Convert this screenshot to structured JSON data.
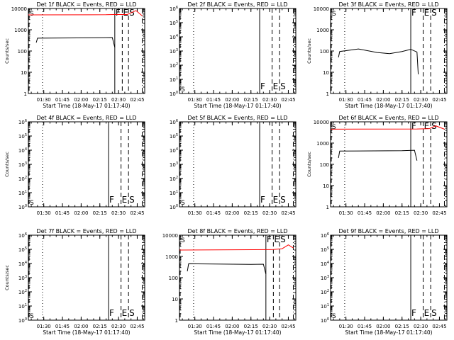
{
  "chart_data": [
    {
      "type": "line",
      "title": "Det 1f BLACK = Events, RED = LLD",
      "ylabel": "Counts/sec",
      "xlabel": "Start Time (18-May-17 01:17:40)",
      "x_ticks": [
        "01:30",
        "01:45",
        "02:00",
        "02:15",
        "02:30",
        "02:45"
      ],
      "y_scale": "log",
      "y_ticks": [
        "1",
        "10",
        "100",
        "1000",
        "10000"
      ],
      "ylim": [
        1,
        10000
      ],
      "markers": [
        {
          "label": "S",
          "time": "01:17:40",
          "style": "dashed"
        },
        {
          "label": "",
          "time": "01:29",
          "style": "dotted"
        },
        {
          "label": "F",
          "time": "02:27",
          "style": "solid"
        },
        {
          "label": "E",
          "time": "02:33",
          "style": "dashed"
        },
        {
          "label": "S",
          "time": "02:38",
          "style": "dashed"
        },
        {
          "label": "",
          "time": "02:49",
          "style": "dashdot"
        }
      ],
      "series": [
        {
          "name": "BLACK = Events",
          "color": "#000000",
          "x": [
            "01:24",
            "01:25",
            "02:15",
            "02:25",
            "02:27"
          ],
          "y": [
            250,
            400,
            420,
            430,
            150
          ]
        },
        {
          "name": "RED = LLD",
          "color": "#ff0000",
          "x": [
            "01:17:40",
            "02:20",
            "02:27",
            "02:37",
            "02:44",
            "02:49"
          ],
          "y": [
            5000,
            5100,
            5200,
            5200,
            8000,
            4500
          ]
        }
      ]
    },
    {
      "type": "line",
      "title": "Det 2f BLACK = Events, RED = LLD",
      "ylabel": "",
      "xlabel": "Start Time (18-May-17 01:17:40)",
      "x_ticks": [
        "01:30",
        "01:45",
        "02:00",
        "02:15",
        "02:30",
        "02:45"
      ],
      "y_scale": "log",
      "y_ticks": [
        "10^0",
        "10^1",
        "10^2",
        "10^3",
        "10^4",
        "10^5",
        "10^6"
      ],
      "ylim": [
        1,
        1000000
      ],
      "markers": [
        {
          "label": "S",
          "time": "01:17:40",
          "style": "dashed"
        },
        {
          "label": "",
          "time": "01:29",
          "style": "dotted"
        },
        {
          "label": "F",
          "time": "02:22",
          "style": "solid"
        },
        {
          "label": "E",
          "time": "02:32",
          "style": "dashed"
        },
        {
          "label": "S",
          "time": "02:38",
          "style": "dashed"
        },
        {
          "label": "",
          "time": "02:49",
          "style": "dashdot"
        }
      ],
      "series": []
    },
    {
      "type": "line",
      "title": "Det 3f BLACK = Events, RED = LLD",
      "ylabel": "Counts/sec",
      "xlabel": "Start Time (18-May-17 01:17:40)",
      "x_ticks": [
        "01:30",
        "01:45",
        "02:00",
        "02:15",
        "02:30",
        "02:45"
      ],
      "y_scale": "log",
      "y_ticks": [
        "1",
        "10",
        "100",
        "1000",
        "10000"
      ],
      "ylim": [
        1,
        10000
      ],
      "markers": [
        {
          "label": "S",
          "time": "01:17:40",
          "style": "dashed"
        },
        {
          "label": "",
          "time": "01:29",
          "style": "dotted"
        },
        {
          "label": "F",
          "time": "02:22",
          "style": "solid"
        },
        {
          "label": "E",
          "time": "02:32",
          "style": "dashed"
        },
        {
          "label": "S",
          "time": "02:38",
          "style": "dashed"
        },
        {
          "label": "",
          "time": "02:49",
          "style": "dashdot"
        }
      ],
      "series": [
        {
          "name": "BLACK = Events",
          "color": "#000000",
          "x": [
            "01:24",
            "01:25",
            "01:40",
            "01:55",
            "02:05",
            "02:15",
            "02:22",
            "02:27",
            "02:28"
          ],
          "y": [
            50,
            95,
            125,
            85,
            75,
            95,
            120,
            90,
            8
          ]
        }
      ]
    },
    {
      "type": "line",
      "title": "Det 4f BLACK = Events, RED = LLD",
      "ylabel": "Counts/sec",
      "xlabel": "",
      "x_ticks": [
        "01:30",
        "01:45",
        "02:00",
        "02:15",
        "02:30",
        "02:45"
      ],
      "y_scale": "log",
      "y_ticks": [
        "10^0",
        "10^1",
        "10^2",
        "10^3",
        "10^4",
        "10^5",
        "10^6"
      ],
      "ylim": [
        1,
        1000000
      ],
      "markers": [
        {
          "label": "S",
          "time": "01:17:40",
          "style": "dashed"
        },
        {
          "label": "",
          "time": "01:29",
          "style": "dotted"
        },
        {
          "label": "F",
          "time": "02:22",
          "style": "solid"
        },
        {
          "label": "E",
          "time": "02:32",
          "style": "dashed"
        },
        {
          "label": "S",
          "time": "02:38",
          "style": "dashed"
        },
        {
          "label": "",
          "time": "02:49",
          "style": "dashdot"
        }
      ],
      "series": []
    },
    {
      "type": "line",
      "title": "Det 5f BLACK = Events, RED = LLD",
      "ylabel": "",
      "xlabel": "",
      "x_ticks": [
        "01:30",
        "01:45",
        "02:00",
        "02:15",
        "02:30",
        "02:45"
      ],
      "y_scale": "log",
      "y_ticks": [
        "10^0",
        "10^1",
        "10^2",
        "10^3",
        "10^4",
        "10^5",
        "10^6"
      ],
      "ylim": [
        1,
        1000000
      ],
      "markers": [
        {
          "label": "S",
          "time": "01:17:40",
          "style": "dashed"
        },
        {
          "label": "",
          "time": "01:29",
          "style": "dotted"
        },
        {
          "label": "F",
          "time": "02:22",
          "style": "solid"
        },
        {
          "label": "E",
          "time": "02:32",
          "style": "dashed"
        },
        {
          "label": "S",
          "time": "02:38",
          "style": "dashed"
        },
        {
          "label": "",
          "time": "02:49",
          "style": "dashdot"
        }
      ],
      "series": []
    },
    {
      "type": "line",
      "title": "Det 6f BLACK = Events, RED = LLD",
      "ylabel": "Counts/sec",
      "xlabel": "",
      "x_ticks": [
        "01:30",
        "01:45",
        "02:00",
        "02:15",
        "02:30",
        "02:45"
      ],
      "y_scale": "log",
      "y_ticks": [
        "1",
        "10",
        "100",
        "1000",
        "10000"
      ],
      "ylim": [
        1,
        10000
      ],
      "markers": [
        {
          "label": "S",
          "time": "01:17:40",
          "style": "dashed"
        },
        {
          "label": "",
          "time": "01:29",
          "style": "dotted"
        },
        {
          "label": "F",
          "time": "02:22",
          "style": "solid"
        },
        {
          "label": "E",
          "time": "02:32",
          "style": "dashed"
        },
        {
          "label": "S",
          "time": "02:38",
          "style": "dashed"
        },
        {
          "label": "",
          "time": "02:49",
          "style": "dashdot"
        }
      ],
      "series": [
        {
          "name": "BLACK = Events",
          "color": "#000000",
          "x": [
            "01:24",
            "01:25",
            "02:15",
            "02:25",
            "02:27"
          ],
          "y": [
            200,
            420,
            440,
            460,
            150
          ]
        },
        {
          "name": "RED = LLD",
          "color": "#ff0000",
          "x": [
            "01:17:40",
            "02:27",
            "02:37",
            "02:42",
            "02:49"
          ],
          "y": [
            4500,
            4600,
            4800,
            6500,
            4500
          ]
        }
      ]
    },
    {
      "type": "line",
      "title": "Det 7f BLACK = Events, RED = LLD",
      "ylabel": "Counts/sec",
      "xlabel": "Start Time (18-May-17 01:17:40)",
      "x_ticks": [
        "01:30",
        "01:45",
        "02:00",
        "02:15",
        "02:30",
        "02:45"
      ],
      "y_scale": "log",
      "y_ticks": [
        "10^0",
        "10^1",
        "10^2",
        "10^3",
        "10^4",
        "10^5",
        "10^6"
      ],
      "ylim": [
        1,
        1000000
      ],
      "markers": [
        {
          "label": "S",
          "time": "01:17:40",
          "style": "dashed"
        },
        {
          "label": "",
          "time": "01:29",
          "style": "dotted"
        },
        {
          "label": "F",
          "time": "02:22",
          "style": "solid"
        },
        {
          "label": "E",
          "time": "02:32",
          "style": "dashed"
        },
        {
          "label": "S",
          "time": "02:38",
          "style": "dashed"
        },
        {
          "label": "",
          "time": "02:49",
          "style": "dashdot"
        }
      ],
      "series": []
    },
    {
      "type": "line",
      "title": "Det 8f BLACK = Events, RED = LLD",
      "ylabel": "",
      "xlabel": "Start Time (18-May-17 01:17:40)",
      "x_ticks": [
        "01:30",
        "01:45",
        "02:00",
        "02:15",
        "02:30",
        "02:45"
      ],
      "y_scale": "log",
      "y_ticks": [
        "1",
        "10",
        "100",
        "1000",
        "10000"
      ],
      "ylim": [
        1,
        10000
      ],
      "markers": [
        {
          "label": "S",
          "time": "01:17:40",
          "style": "dashed"
        },
        {
          "label": "",
          "time": "01:29",
          "style": "dotted"
        },
        {
          "label": "F",
          "time": "02:27",
          "style": "solid"
        },
        {
          "label": "E",
          "time": "02:33",
          "style": "dashed"
        },
        {
          "label": "S",
          "time": "02:38",
          "style": "dashed"
        },
        {
          "label": "",
          "time": "02:49",
          "style": "dashdot"
        }
      ],
      "series": [
        {
          "name": "BLACK = Events",
          "color": "#000000",
          "x": [
            "01:24",
            "01:25",
            "02:15",
            "02:25",
            "02:27"
          ],
          "y": [
            200,
            450,
            420,
            430,
            150
          ]
        },
        {
          "name": "RED = LLD",
          "color": "#ff0000",
          "x": [
            "01:17:40",
            "02:33",
            "02:40",
            "02:45",
            "02:49"
          ],
          "y": [
            2000,
            2100,
            2300,
            3500,
            2500
          ]
        }
      ]
    },
    {
      "type": "line",
      "title": "Det 9f BLACK = Events, RED = LLD",
      "ylabel": "",
      "xlabel": "Start Time (18-May-17 01:17:40)",
      "x_ticks": [
        "01:30",
        "01:45",
        "02:00",
        "02:15",
        "02:30",
        "02:45"
      ],
      "y_scale": "log",
      "y_ticks": [
        "10^0",
        "10^1",
        "10^2",
        "10^3",
        "10^4",
        "10^5",
        "10^6"
      ],
      "ylim": [
        1,
        1000000
      ],
      "markers": [
        {
          "label": "S",
          "time": "01:17:40",
          "style": "dashed"
        },
        {
          "label": "",
          "time": "01:29",
          "style": "dotted"
        },
        {
          "label": "F",
          "time": "02:22",
          "style": "solid"
        },
        {
          "label": "E",
          "time": "02:32",
          "style": "dashed"
        },
        {
          "label": "S",
          "time": "02:38",
          "style": "dashed"
        },
        {
          "label": "",
          "time": "02:49",
          "style": "dashdot"
        }
      ],
      "series": []
    }
  ]
}
